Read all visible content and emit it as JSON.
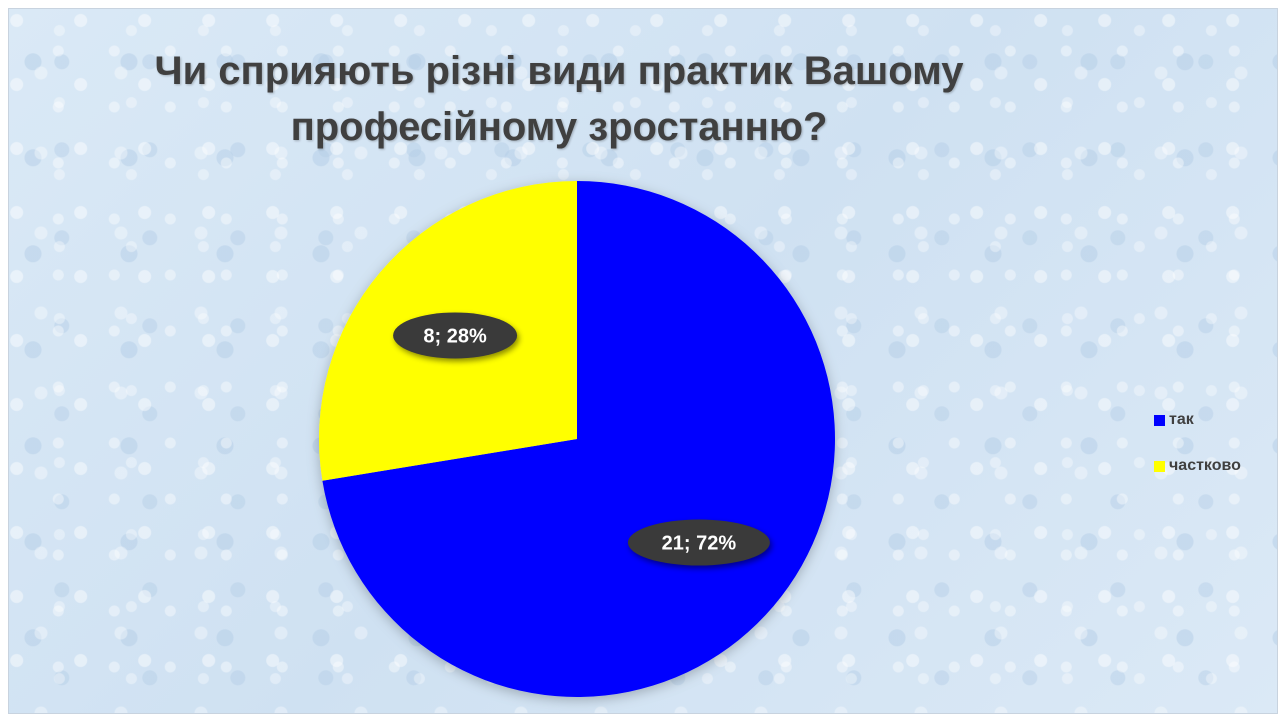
{
  "chart_data": {
    "type": "pie",
    "title": "Чи сприяють різні види практик Вашому професійному зростанню?",
    "categories": [
      "так",
      "частково"
    ],
    "values": [
      21,
      8
    ],
    "percentages": [
      "72%",
      "28%"
    ],
    "data_labels": [
      "21; 72%",
      "8; 28%"
    ],
    "colors": [
      "#0000FF",
      "#FFFF00"
    ],
    "start_angle_deg": 0,
    "legend": "right"
  }
}
